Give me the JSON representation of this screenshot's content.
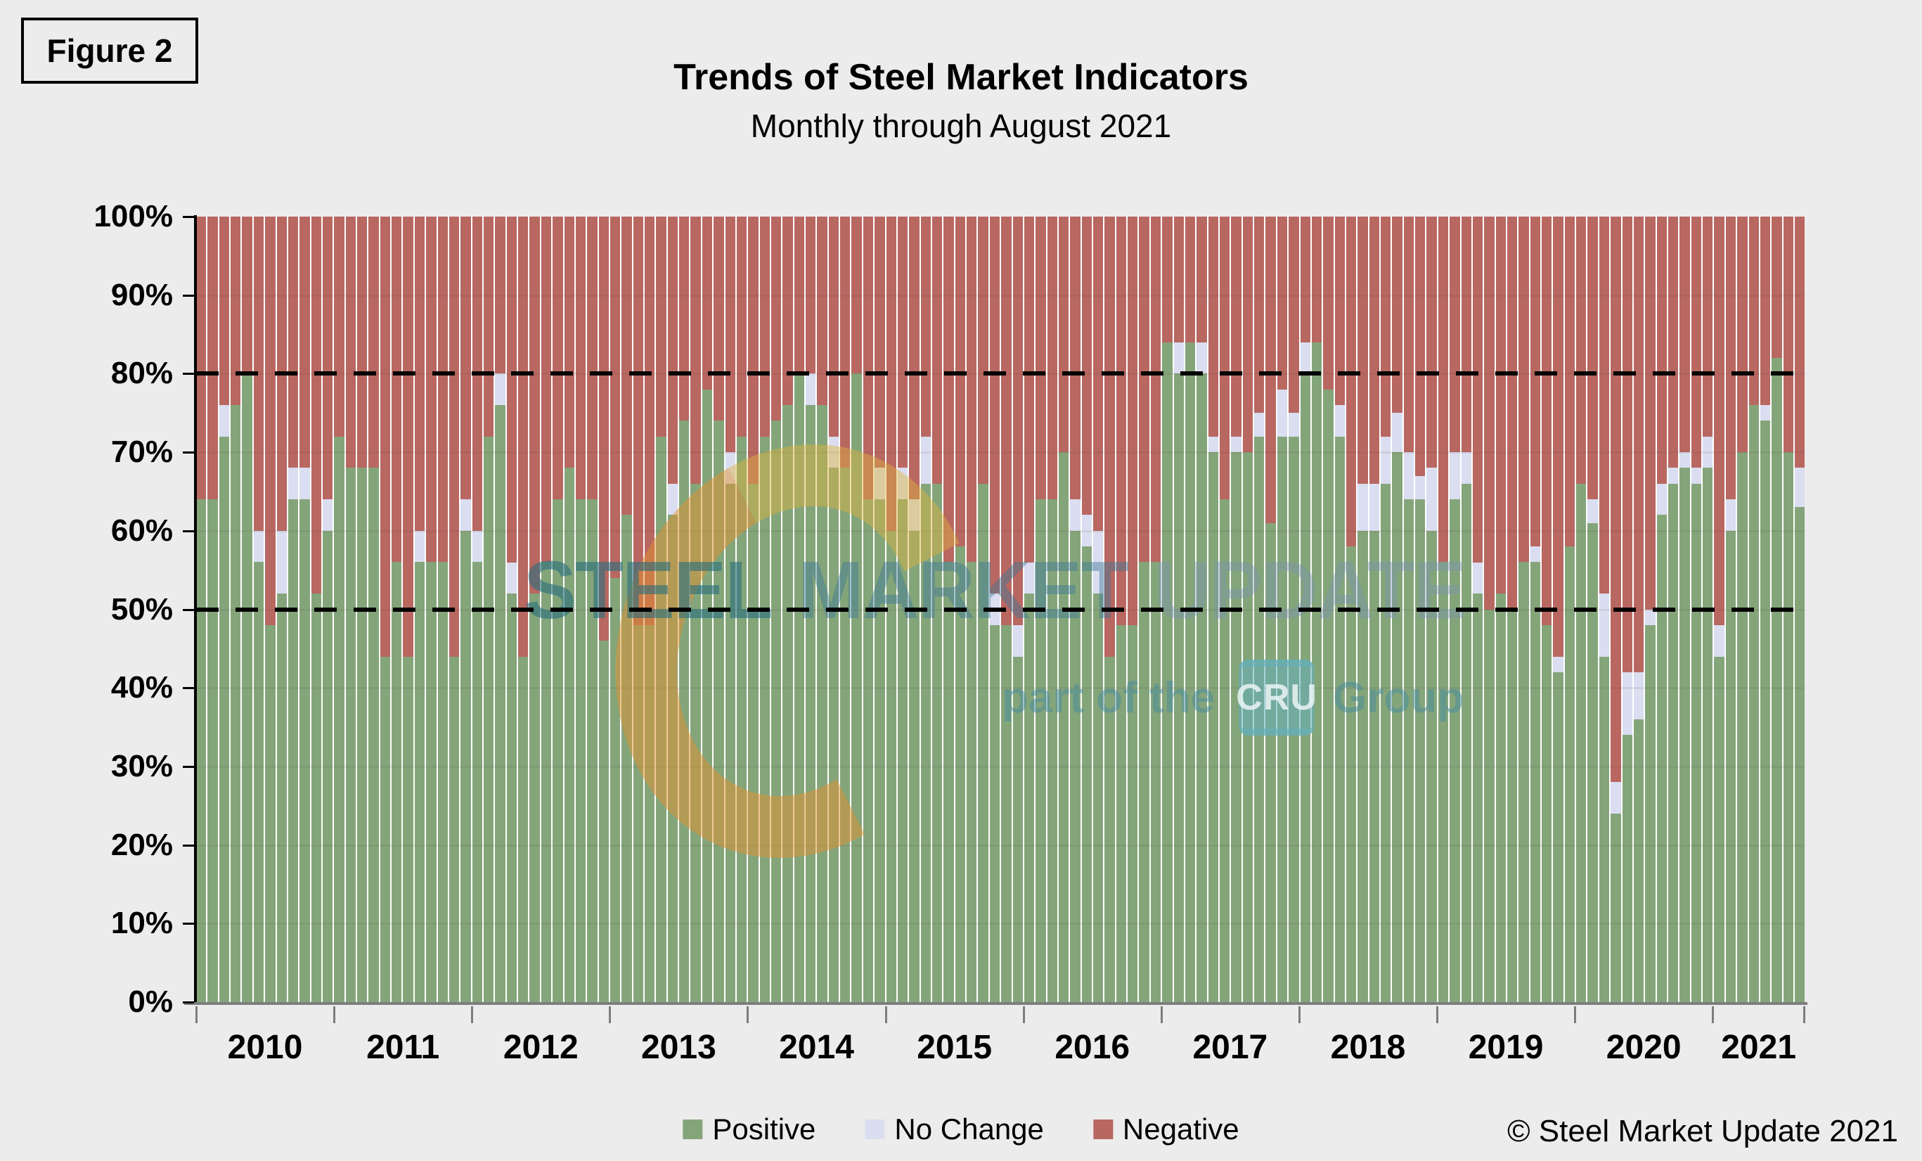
{
  "figure_label": "Figure 2",
  "header": {
    "title": "Trends of Steel Market Indicators",
    "subtitle": "Monthly through August 2021"
  },
  "copyright": "© Steel Market Update 2021",
  "watermark": {
    "word1": "STEEL",
    "word2": "MARKET",
    "word3": "UPDATE",
    "tagline_prefix": "part of the",
    "tagline_logo": "CRU",
    "tagline_suffix": "Group"
  },
  "legend": {
    "items": [
      {
        "label": "Positive",
        "color": "#84a57a"
      },
      {
        "label": "No Change",
        "color": "#dadef0"
      },
      {
        "label": "Negative",
        "color": "#b96761"
      }
    ]
  },
  "colors": {
    "positive": "#84a57a",
    "no_change": "#dadef0",
    "negative": "#b96761",
    "background": "#ececec",
    "axis_gray": "#7d7d7d"
  },
  "chart_data": {
    "type": "bar",
    "stacked": true,
    "unit": "percent",
    "title": "Trends of Steel Market Indicators",
    "subtitle": "Monthly through August 2021",
    "x_years": [
      2010,
      2011,
      2012,
      2013,
      2014,
      2015,
      2016,
      2017,
      2018,
      2019,
      2020,
      2021
    ],
    "months_start": "2010-01",
    "months_end": "2021-08",
    "n_months": 140,
    "ylim": [
      0,
      100
    ],
    "yticks": [
      0,
      10,
      20,
      30,
      40,
      50,
      60,
      70,
      80,
      90,
      100
    ],
    "reference_lines": [
      50,
      80
    ],
    "legend_position": "bottom",
    "series": [
      {
        "name": "Positive",
        "values": [
          64,
          64,
          72,
          76,
          80,
          56,
          48,
          52,
          64,
          64,
          52,
          60,
          72,
          68,
          68,
          68,
          44,
          56,
          44,
          56,
          56,
          56,
          44,
          60,
          56,
          72,
          76,
          52,
          44,
          52,
          56,
          64,
          68,
          64,
          64,
          46,
          54,
          62,
          48,
          48,
          72,
          62,
          74,
          66,
          78,
          74,
          66,
          72,
          66,
          72,
          74,
          76,
          80,
          76,
          76,
          68,
          68,
          80,
          64,
          64,
          60,
          64,
          60,
          66,
          66,
          56,
          58,
          56,
          66,
          48,
          48,
          44,
          52,
          64,
          64,
          70,
          60,
          58,
          52,
          44,
          48,
          48,
          56,
          56,
          84,
          80,
          84,
          80,
          70,
          64,
          70,
          70,
          72,
          61,
          72,
          72,
          80,
          84,
          78,
          72,
          58,
          60,
          60,
          66,
          70,
          64,
          64,
          60,
          56,
          64,
          66,
          52,
          50,
          52,
          50,
          56,
          56,
          48,
          42,
          58,
          66,
          61,
          44,
          24,
          34,
          36,
          48,
          62,
          66,
          68,
          66,
          68,
          44,
          60,
          70,
          76,
          74,
          82,
          70,
          63
        ]
      },
      {
        "name": "No Change",
        "values": [
          0,
          0,
          4,
          0,
          0,
          4,
          0,
          8,
          4,
          4,
          0,
          4,
          0,
          0,
          0,
          0,
          0,
          0,
          0,
          4,
          0,
          0,
          0,
          4,
          4,
          0,
          4,
          4,
          0,
          0,
          0,
          0,
          0,
          0,
          0,
          0,
          0,
          0,
          0,
          0,
          0,
          4,
          0,
          0,
          0,
          0,
          4,
          0,
          0,
          0,
          0,
          0,
          0,
          4,
          0,
          4,
          0,
          0,
          0,
          4,
          0,
          4,
          4,
          6,
          0,
          0,
          0,
          0,
          0,
          4,
          0,
          4,
          4,
          0,
          0,
          0,
          4,
          4,
          8,
          0,
          0,
          0,
          0,
          0,
          0,
          4,
          0,
          4,
          2,
          0,
          2,
          0,
          3,
          0,
          6,
          3,
          4,
          0,
          0,
          4,
          0,
          6,
          6,
          6,
          5,
          6,
          3,
          8,
          0,
          6,
          4,
          4,
          0,
          0,
          0,
          0,
          2,
          0,
          2,
          0,
          0,
          3,
          8,
          4,
          8,
          6,
          2,
          4,
          2,
          2,
          2,
          4,
          4,
          4,
          0,
          0,
          2,
          0,
          0,
          5
        ]
      },
      {
        "name": "Negative",
        "values": [
          36,
          36,
          24,
          24,
          20,
          40,
          52,
          40,
          32,
          32,
          48,
          36,
          28,
          32,
          32,
          32,
          56,
          44,
          56,
          40,
          44,
          44,
          56,
          36,
          40,
          28,
          20,
          44,
          56,
          48,
          44,
          36,
          32,
          36,
          36,
          54,
          46,
          38,
          52,
          52,
          28,
          34,
          26,
          34,
          22,
          26,
          30,
          28,
          34,
          28,
          26,
          24,
          20,
          20,
          24,
          28,
          32,
          20,
          36,
          32,
          40,
          32,
          36,
          28,
          34,
          44,
          42,
          44,
          34,
          48,
          52,
          52,
          44,
          36,
          36,
          30,
          36,
          38,
          40,
          56,
          52,
          52,
          44,
          44,
          16,
          16,
          16,
          16,
          28,
          36,
          28,
          30,
          25,
          39,
          22,
          25,
          16,
          16,
          22,
          24,
          42,
          34,
          34,
          28,
          25,
          30,
          33,
          32,
          44,
          30,
          30,
          44,
          50,
          48,
          50,
          44,
          42,
          52,
          56,
          42,
          34,
          36,
          48,
          72,
          58,
          58,
          50,
          34,
          32,
          30,
          32,
          28,
          52,
          36,
          30,
          24,
          24,
          18,
          30,
          32
        ]
      }
    ]
  }
}
